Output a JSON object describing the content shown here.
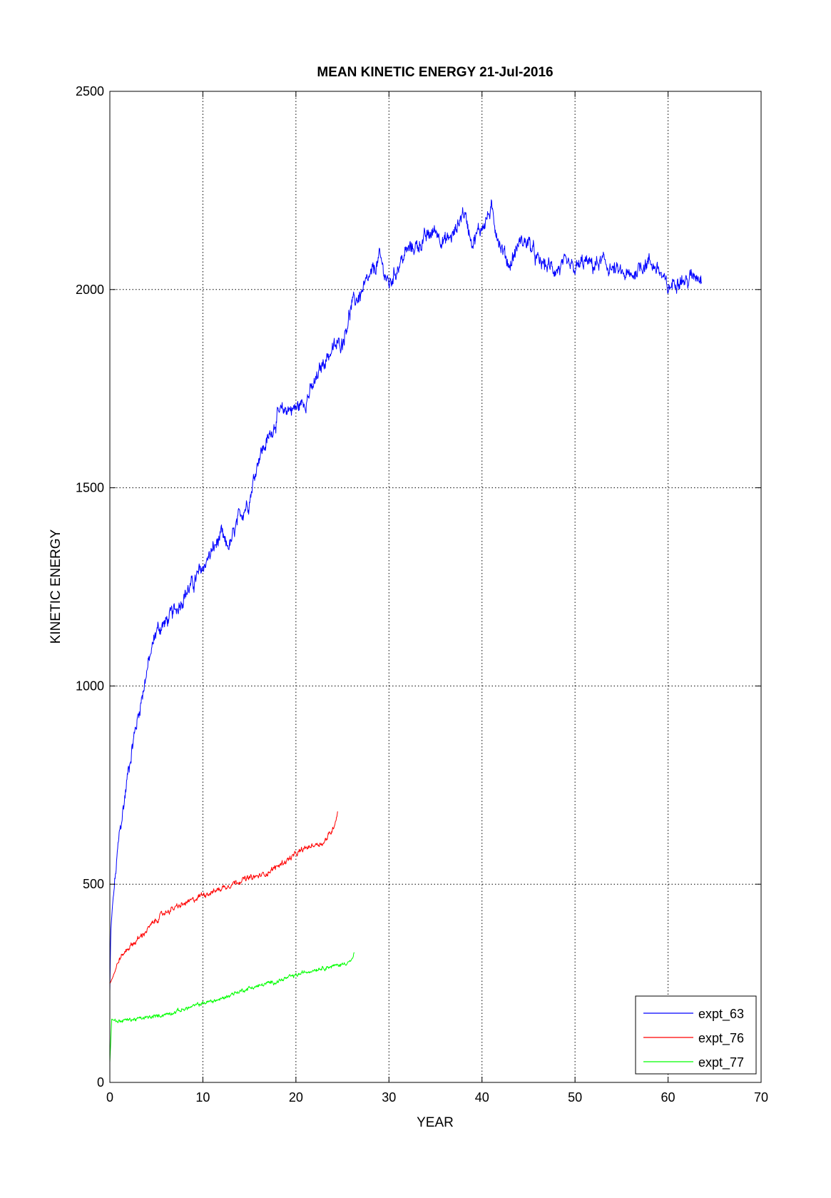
{
  "chart_data": {
    "type": "line",
    "title": "MEAN KINETIC ENERGY 21-Jul-2016",
    "xlabel": "YEAR",
    "ylabel": "KINETIC ENERGY",
    "xlim": [
      0,
      70
    ],
    "ylim": [
      0,
      2500
    ],
    "xticks": [
      0,
      10,
      20,
      30,
      40,
      50,
      60,
      70
    ],
    "yticks": [
      0,
      500,
      1000,
      1500,
      2000,
      2500
    ],
    "grid": true,
    "legend_position": "bottom-right",
    "series": [
      {
        "name": "expt_63",
        "color": "#0000ff",
        "noise": 28,
        "x": [
          0,
          0.1,
          0.3,
          0.6,
          1,
          1.5,
          2,
          2.5,
          3,
          3.5,
          4,
          4.5,
          5,
          6,
          7,
          8,
          9,
          10,
          11,
          12,
          12.5,
          13,
          14,
          15,
          16,
          17,
          18,
          19,
          20,
          21,
          22,
          23,
          24,
          25,
          26,
          27,
          28,
          29,
          30,
          31,
          32,
          33,
          34,
          35,
          36,
          37,
          38,
          39,
          40,
          41,
          42,
          43,
          44,
          45,
          46,
          47,
          48,
          49,
          50,
          51,
          52,
          53,
          54,
          55,
          56,
          57,
          58,
          59,
          60,
          61,
          62,
          63,
          63.6
        ],
        "y": [
          230,
          380,
          450,
          520,
          620,
          700,
          790,
          860,
          920,
          980,
          1040,
          1090,
          1140,
          1160,
          1190,
          1230,
          1260,
          1300,
          1340,
          1380,
          1350,
          1360,
          1430,
          1470,
          1580,
          1620,
          1680,
          1700,
          1700,
          1720,
          1760,
          1820,
          1850,
          1870,
          1960,
          1990,
          2030,
          2080,
          2010,
          2060,
          2100,
          2110,
          2130,
          2150,
          2120,
          2140,
          2200,
          2120,
          2160,
          2200,
          2110,
          2060,
          2120,
          2120,
          2070,
          2060,
          2050,
          2060,
          2050,
          2070,
          2060,
          2070,
          2050,
          2040,
          2030,
          2060,
          2070,
          2050,
          2000,
          2030,
          2020,
          2040,
          2030
        ]
      },
      {
        "name": "expt_76",
        "color": "#ff0000",
        "noise": 10,
        "x": [
          0,
          0.3,
          1,
          2,
          3,
          4,
          5,
          6,
          7,
          8,
          9,
          10,
          11,
          12,
          13,
          14,
          15,
          16,
          17,
          18,
          19,
          20,
          21,
          22,
          23,
          24,
          24.5
        ],
        "y": [
          250,
          265,
          310,
          340,
          360,
          385,
          410,
          430,
          440,
          450,
          460,
          475,
          480,
          490,
          500,
          510,
          515,
          520,
          530,
          545,
          560,
          575,
          590,
          600,
          605,
          640,
          685
        ]
      },
      {
        "name": "expt_77",
        "color": "#00ff00",
        "noise": 7,
        "x": [
          0,
          0.2,
          0.6,
          1,
          2,
          3,
          4,
          5,
          6,
          7,
          8,
          9,
          10,
          11,
          12,
          13,
          14,
          15,
          16,
          17,
          18,
          19,
          20,
          21,
          22,
          23,
          24,
          25,
          26,
          26.3
        ],
        "y": [
          50,
          160,
          155,
          155,
          158,
          160,
          163,
          167,
          172,
          178,
          185,
          192,
          200,
          205,
          210,
          222,
          230,
          238,
          243,
          250,
          255,
          263,
          270,
          278,
          285,
          290,
          293,
          298,
          308,
          325
        ]
      }
    ]
  }
}
